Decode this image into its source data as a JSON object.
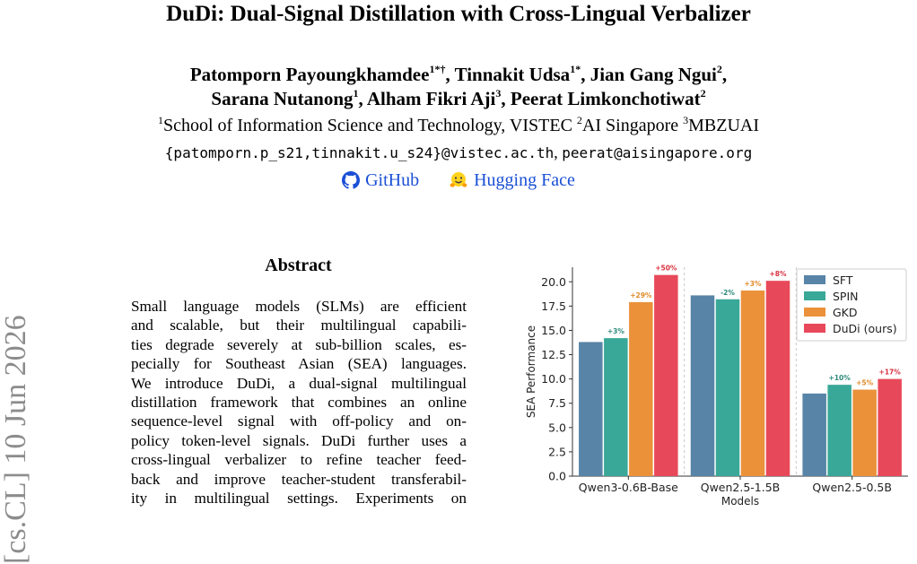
{
  "paper": {
    "title": "DuDi: Dual-Signal Distillation with Cross-Lingual Verbalizer",
    "authors_line1": [
      {
        "name": "Patomporn Payoungkhamdee",
        "sup": "1*†",
        "sep": ", "
      },
      {
        "name": "Tinnakit Udsa",
        "sup": "1*",
        "sep": ", "
      },
      {
        "name": "Jian Gang Ngui",
        "sup": "2",
        "sep": ","
      }
    ],
    "authors_line2": [
      {
        "name": "Sarana Nutanong",
        "sup": "1",
        "sep": ", "
      },
      {
        "name": "Alham Fikri Aji",
        "sup": "3",
        "sep": ", "
      },
      {
        "name": "Peerat Limkonchotiwat",
        "sup": "2",
        "sep": ""
      }
    ],
    "affiliations": [
      {
        "sup": "1",
        "name": "School of Information Science and Technology, VISTEC "
      },
      {
        "sup": "2",
        "name": "AI Singapore "
      },
      {
        "sup": "3",
        "name": "MBZUAI"
      }
    ],
    "emails": {
      "part1": "{patomporn.p_s21,tinnakit.u_s24}@vistec.ac.th",
      "sep": ", ",
      "part2": "peerat@aisingapore.org"
    },
    "links": {
      "github": "GitHub",
      "huggingface": "Hugging Face"
    },
    "arxiv_stamp": "[cs.CL]  10 Jun 2026",
    "abstract_heading": "Abstract",
    "abstract_lines": [
      "Small language models (SLMs) are efficient",
      "and scalable, but their multilingual capabili-",
      "ties degrade severely at sub-billion scales, es-",
      "pecially for Southeast Asian (SEA) languages.",
      "We introduce DuDi, a dual-signal multilingual",
      "distillation framework that combines an online",
      "sequence-level signal with off-policy and on-",
      "policy token-level signals. DuDi further uses a",
      "cross-lingual verbalizer to refine teacher feed-",
      "back and improve teacher-student transferabil-",
      "ity in multilingual settings.  Experiments on"
    ]
  },
  "chart_data": {
    "type": "bar",
    "categories": [
      "Qwen3-0.6B-Base",
      "Qwen2.5-1.5B",
      "Qwen2.5-0.5B"
    ],
    "series": [
      {
        "name": "SFT",
        "color": "#5784a7",
        "values": [
          13.8,
          18.6,
          8.5
        ],
        "labels": [
          "",
          "",
          ""
        ]
      },
      {
        "name": "SPIN",
        "color": "#3aa898",
        "values": [
          14.2,
          18.2,
          9.4
        ],
        "labels": [
          "+3%",
          "-2%",
          "+10%"
        ],
        "label_color": "#2d8a7c"
      },
      {
        "name": "GKD",
        "color": "#ea913a",
        "values": [
          17.9,
          19.1,
          8.9
        ],
        "labels": [
          "+29%",
          "+3%",
          "+5%"
        ],
        "label_color": "#e08a28"
      },
      {
        "name": "DuDi (ours)",
        "color": "#e8495a",
        "values": [
          20.7,
          20.1,
          10.0
        ],
        "labels": [
          "+50%",
          "+8%",
          "+17%"
        ],
        "label_color": "#d8313f"
      }
    ],
    "xlabel": "Models",
    "ylabel": "SEA Performance",
    "ylim": [
      0,
      21.5
    ],
    "yticks": [
      0.0,
      2.5,
      5.0,
      7.5,
      10.0,
      12.5,
      15.0,
      17.5,
      20.0
    ],
    "grid": "vertical-dashed",
    "legend": "top-right"
  }
}
